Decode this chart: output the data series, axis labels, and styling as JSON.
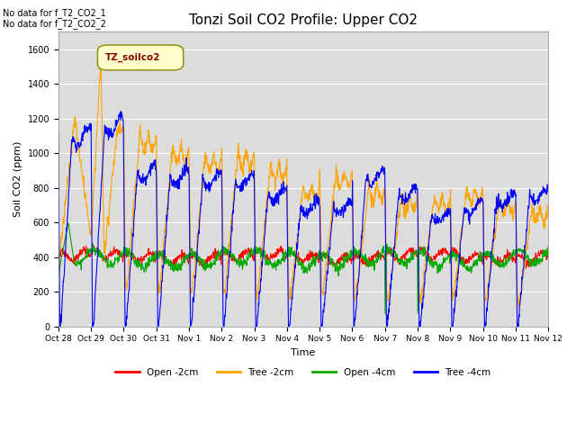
{
  "title": "Tonzi Soil CO2 Profile: Upper CO2",
  "xlabel": "Time",
  "ylabel": "Soil CO2 (ppm)",
  "annotations": [
    "No data for f_T2_CO2_1",
    "No data for f_T2_CO2_2"
  ],
  "legend_labels": [
    "Open -2cm",
    "Tree -2cm",
    "Open -4cm",
    "Tree -4cm"
  ],
  "legend_colors": [
    "#ff0000",
    "#ffa500",
    "#00aa00",
    "#0000ff"
  ],
  "xtick_labels": [
    "Oct 28",
    "Oct 29",
    "Oct 30",
    "Oct 31",
    "Nov 1",
    "Nov 2",
    "Nov 3",
    "Nov 4",
    "Nov 5",
    "Nov 6",
    "Nov 7",
    "Nov 8",
    "Nov 9",
    "Nov 10",
    "Nov 11",
    "Nov 12"
  ],
  "ylim": [
    0,
    1700
  ],
  "yticks": [
    0,
    200,
    400,
    600,
    800,
    1000,
    1200,
    1400,
    1600
  ],
  "bg_color": "#e8e8e8",
  "plot_bg_color": "#dcdcdc",
  "legend_box_color": "#ffffcc",
  "legend_box_label": "TZ_soilco2",
  "title_fontsize": 11,
  "axis_fontsize": 8,
  "tick_fontsize": 7,
  "n_days": 15,
  "pts_per_day": 96
}
